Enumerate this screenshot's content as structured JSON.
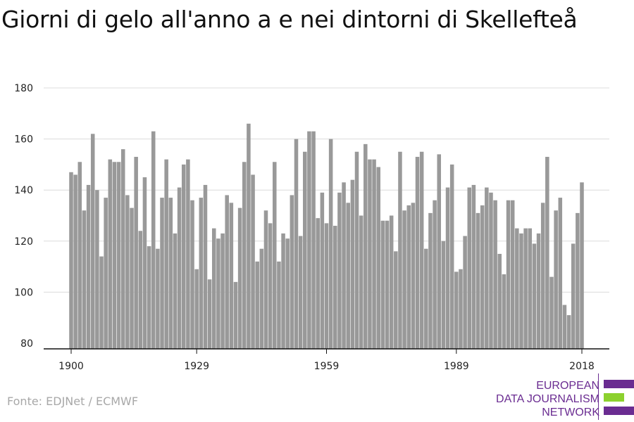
{
  "title": "Giorni di gelo all'anno a e nei dintorni di Skellefteå",
  "source": "Fonte: EDJNet / ECMWF",
  "logo": {
    "lines": [
      "EUROPEAN",
      "DATA JOURNALISM",
      "NETWORK"
    ],
    "colors": {
      "purple": "#6a2c91",
      "green": "#8cd12e"
    }
  },
  "chart_data": {
    "type": "bar",
    "x": [
      1900,
      1901,
      1902,
      1903,
      1904,
      1905,
      1906,
      1907,
      1908,
      1909,
      1910,
      1911,
      1912,
      1913,
      1914,
      1915,
      1916,
      1917,
      1918,
      1919,
      1920,
      1921,
      1922,
      1923,
      1924,
      1925,
      1926,
      1927,
      1928,
      1929,
      1930,
      1931,
      1932,
      1933,
      1934,
      1935,
      1936,
      1937,
      1938,
      1939,
      1940,
      1941,
      1942,
      1943,
      1944,
      1945,
      1946,
      1947,
      1948,
      1949,
      1950,
      1951,
      1952,
      1953,
      1954,
      1955,
      1956,
      1957,
      1958,
      1959,
      1960,
      1961,
      1962,
      1963,
      1964,
      1965,
      1966,
      1967,
      1968,
      1969,
      1970,
      1971,
      1972,
      1973,
      1974,
      1975,
      1976,
      1977,
      1978,
      1979,
      1980,
      1981,
      1982,
      1983,
      1984,
      1985,
      1986,
      1987,
      1988,
      1989,
      1990,
      1991,
      1992,
      1993,
      1994,
      1995,
      1996,
      1997,
      1998,
      1999,
      2000,
      2001,
      2002,
      2003,
      2004,
      2005,
      2006,
      2007,
      2008,
      2009,
      2010,
      2011,
      2012,
      2013,
      2014,
      2015,
      2016,
      2017,
      2018
    ],
    "values": [
      147,
      146,
      151,
      132,
      142,
      162,
      140,
      114,
      137,
      152,
      151,
      151,
      156,
      138,
      133,
      153,
      124,
      145,
      118,
      163,
      117,
      137,
      152,
      137,
      123,
      141,
      150,
      152,
      136,
      109,
      137,
      142,
      105,
      125,
      121,
      123,
      138,
      135,
      104,
      133,
      151,
      166,
      146,
      112,
      117,
      132,
      127,
      151,
      112,
      123,
      121,
      138,
      160,
      122,
      155,
      163,
      163,
      129,
      139,
      127,
      160,
      126,
      139,
      143,
      135,
      144,
      155,
      130,
      158,
      152,
      152,
      149,
      128,
      128,
      130,
      116,
      155,
      132,
      134,
      135,
      153,
      155,
      117,
      131,
      136,
      154,
      120,
      141,
      150,
      108,
      109,
      122,
      141,
      142,
      131,
      134,
      141,
      139,
      136,
      115,
      107,
      136,
      136,
      125,
      123,
      125,
      125,
      119,
      123,
      135,
      153,
      106,
      132,
      137,
      95,
      91,
      119,
      131,
      143
    ],
    "ylim": [
      80,
      180
    ],
    "yticks": [
      80,
      100,
      120,
      140,
      160,
      180
    ],
    "xticks": [
      1900,
      1929,
      1959,
      1989,
      2018
    ],
    "bar_color": "#999999",
    "grid_color": "#dcdcdc",
    "grid": true
  }
}
